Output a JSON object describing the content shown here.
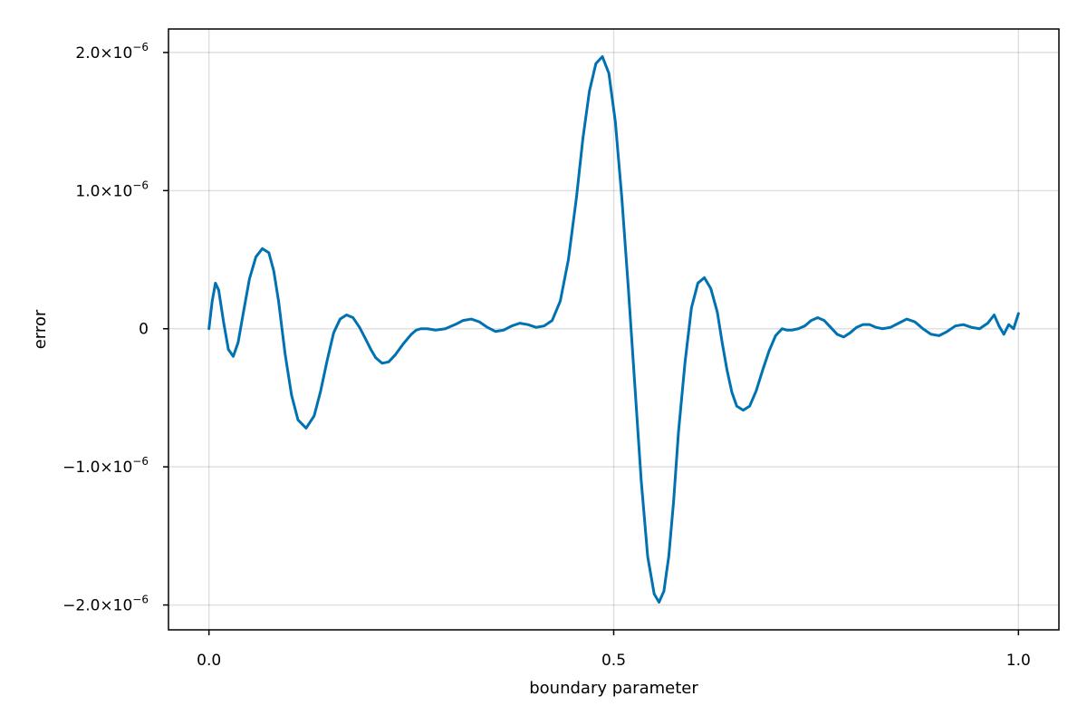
{
  "chart_data": {
    "type": "line",
    "title": "",
    "xlabel": "boundary parameter",
    "ylabel": "error",
    "xlim": [
      -0.05,
      1.05
    ],
    "ylim": [
      -2.18e-06,
      2.17e-06
    ],
    "grid": true,
    "x_ticks": [
      {
        "value": 0.0,
        "label": "0.0"
      },
      {
        "value": 0.5,
        "label": "0.5"
      },
      {
        "value": 1.0,
        "label": "1.0"
      }
    ],
    "y_ticks": [
      {
        "value": -2e-06,
        "mantissa": "−2.0×10",
        "exp": "−6"
      },
      {
        "value": -1e-06,
        "mantissa": "−1.0×10",
        "exp": "−6"
      },
      {
        "value": 0,
        "mantissa": "0",
        "exp": ""
      },
      {
        "value": 1e-06,
        "mantissa": "1.0×10",
        "exp": "−6"
      },
      {
        "value": 2e-06,
        "mantissa": "2.0×10",
        "exp": "−6"
      }
    ],
    "series": [
      {
        "color": "#0072b2",
        "x": [
          0.0,
          0.004,
          0.008,
          0.012,
          0.018,
          0.024,
          0.03,
          0.036,
          0.042,
          0.05,
          0.058,
          0.066,
          0.074,
          0.08,
          0.086,
          0.094,
          0.102,
          0.11,
          0.12,
          0.13,
          0.138,
          0.146,
          0.154,
          0.162,
          0.17,
          0.178,
          0.186,
          0.194,
          0.2,
          0.206,
          0.214,
          0.222,
          0.23,
          0.24,
          0.25,
          0.256,
          0.262,
          0.27,
          0.28,
          0.292,
          0.304,
          0.314,
          0.324,
          0.334,
          0.344,
          0.354,
          0.364,
          0.374,
          0.384,
          0.394,
          0.404,
          0.414,
          0.424,
          0.434,
          0.444,
          0.454,
          0.462,
          0.47,
          0.478,
          0.486,
          0.494,
          0.502,
          0.51,
          0.518,
          0.526,
          0.534,
          0.542,
          0.55,
          0.556,
          0.562,
          0.568,
          0.574,
          0.58,
          0.588,
          0.596,
          0.604,
          0.612,
          0.62,
          0.628,
          0.634,
          0.64,
          0.646,
          0.652,
          0.66,
          0.668,
          0.676,
          0.684,
          0.692,
          0.7,
          0.708,
          0.714,
          0.72,
          0.728,
          0.736,
          0.744,
          0.752,
          0.76,
          0.768,
          0.776,
          0.784,
          0.792,
          0.8,
          0.808,
          0.816,
          0.824,
          0.832,
          0.842,
          0.852,
          0.862,
          0.872,
          0.882,
          0.892,
          0.902,
          0.912,
          0.922,
          0.932,
          0.942,
          0.952,
          0.962,
          0.97,
          0.976,
          0.982,
          0.988,
          0.994,
          1.0
        ],
        "y": [
          0.0,
          2e-07,
          3.3e-07,
          2.8e-07,
          5e-08,
          -1.5e-07,
          -2e-07,
          -1e-07,
          1e-07,
          3.6e-07,
          5.2e-07,
          5.8e-07,
          5.5e-07,
          4.2e-07,
          2e-07,
          -1.8e-07,
          -4.8e-07,
          -6.6e-07,
          -7.2e-07,
          -6.3e-07,
          -4.5e-07,
          -2.3e-07,
          -3e-08,
          7e-08,
          1e-07,
          8e-08,
          1e-08,
          -8e-08,
          -1.5e-07,
          -2.1e-07,
          -2.5e-07,
          -2.4e-07,
          -1.9e-07,
          -1.1e-07,
          -4e-08,
          -1e-08,
          0.0,
          0.0,
          -1e-08,
          0.0,
          3e-08,
          6e-08,
          7e-08,
          5e-08,
          1e-08,
          -2e-08,
          -1e-08,
          2e-08,
          4e-08,
          3e-08,
          1e-08,
          2e-08,
          6e-08,
          2e-07,
          5e-07,
          9.5e-07,
          1.38e-06,
          1.72e-06,
          1.92e-06,
          1.97e-06,
          1.85e-06,
          1.5e-06,
          9.5e-07,
          3e-07,
          -4e-07,
          -1.1e-06,
          -1.65e-06,
          -1.92e-06,
          -1.98e-06,
          -1.9e-06,
          -1.65e-06,
          -1.25e-06,
          -7.5e-07,
          -2.5e-07,
          1.5e-07,
          3.3e-07,
          3.7e-07,
          2.9e-07,
          1.2e-07,
          -1e-07,
          -3e-07,
          -4.6e-07,
          -5.6e-07,
          -5.9e-07,
          -5.6e-07,
          -4.5e-07,
          -3e-07,
          -1.6e-07,
          -5e-08,
          0.0,
          -1e-08,
          -1e-08,
          0.0,
          2e-08,
          6e-08,
          8e-08,
          6e-08,
          1e-08,
          -4e-08,
          -6e-08,
          -3e-08,
          1e-08,
          3e-08,
          3e-08,
          1e-08,
          0.0,
          1e-08,
          4e-08,
          7e-08,
          5e-08,
          0.0,
          -4e-08,
          -5e-08,
          -2e-08,
          2e-08,
          3e-08,
          1e-08,
          0.0,
          4e-08,
          1e-07,
          2e-08,
          -4e-08,
          3e-08,
          0.0,
          1.1e-07
        ]
      }
    ]
  }
}
